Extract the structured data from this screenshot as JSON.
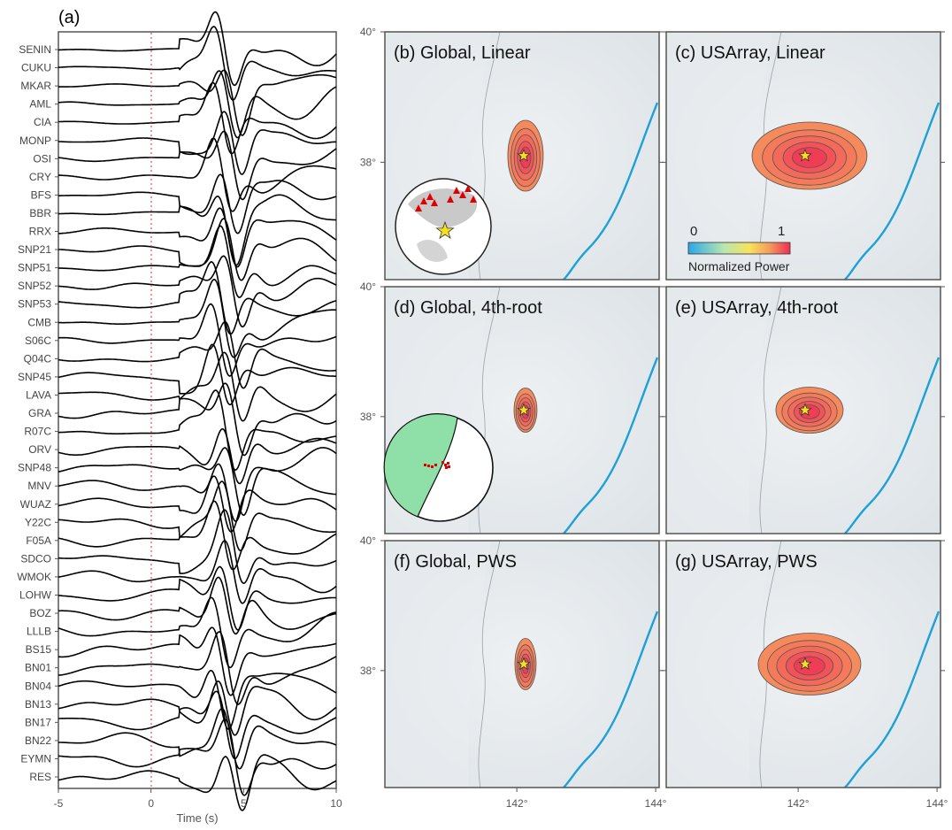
{
  "panel_a": {
    "label": "(a)",
    "stations": [
      "SENIN",
      "CUKU",
      "MKAR",
      "AML",
      "CIA",
      "MONP",
      "OSI",
      "CRY",
      "BFS",
      "BBR",
      "RRX",
      "SNP21",
      "SNP51",
      "SNP52",
      "SNP53",
      "CMB",
      "S06C",
      "Q04C",
      "SNP45",
      "LAVA",
      "GRA",
      "R07C",
      "ORV",
      "SNP48",
      "MNV",
      "WUAZ",
      "Y22C",
      "F05A",
      "SDCO",
      "WMOK",
      "LOHW",
      "BOZ",
      "LLLB",
      "BS15",
      "BN01",
      "BN04",
      "BN13",
      "BN17",
      "BN22",
      "EYMN",
      "RES"
    ],
    "xlabel": "Time (s)",
    "xticks": [
      "-5",
      "0",
      "5",
      "10"
    ]
  },
  "maps": {
    "ytick_labels": [
      "40°",
      "38°"
    ],
    "xtick_labels": [
      "142°",
      "144°"
    ],
    "panels": [
      {
        "label": "(b) Global, Linear"
      },
      {
        "label": "(c) USArray, Linear"
      },
      {
        "label": "(d) Global, 4th-root"
      },
      {
        "label": "(e) USArray, 4th-root"
      },
      {
        "label": "(f) Global, PWS"
      },
      {
        "label": "(g) USArray, PWS"
      }
    ],
    "colorbar": {
      "min": "0",
      "max": "1",
      "title": "Normalized Power"
    }
  },
  "chart_data": [
    {
      "type": "line",
      "title": "(a)",
      "xlabel": "Time (s)",
      "ylabel": "",
      "xlim": [
        -5,
        10
      ],
      "x_ticks": [
        -5,
        0,
        5,
        10
      ],
      "series_names": [
        "SENIN",
        "CUKU",
        "MKAR",
        "AML",
        "CIA",
        "MONP",
        "OSI",
        "CRY",
        "BFS",
        "BBR",
        "RRX",
        "SNP21",
        "SNP51",
        "SNP52",
        "SNP53",
        "CMB",
        "S06C",
        "Q04C",
        "SNP45",
        "LAVA",
        "GRA",
        "R07C",
        "ORV",
        "SNP48",
        "MNV",
        "WUAZ",
        "Y22C",
        "F05A",
        "SDCO",
        "WMOK",
        "LOHW",
        "BOZ",
        "LLLB",
        "BS15",
        "BN01",
        "BN04",
        "BN13",
        "BN17",
        "BN22",
        "EYMN",
        "RES"
      ],
      "reference_line_x": 0
    },
    {
      "type": "heatmap",
      "panels": [
        "(b) Global, Linear",
        "(c) USArray, Linear",
        "(d) Global, 4th-root",
        "(e) USArray, 4th-root",
        "(f) Global, PWS",
        "(g) USArray, PWS"
      ],
      "x_ticks": [
        142,
        144
      ],
      "y_ticks": [
        38,
        40
      ],
      "epicenter": {
        "lon": 142.1,
        "lat": 38.1
      },
      "colorbar_range": [
        0,
        1
      ],
      "colorbar_label": "Normalized Power"
    }
  ],
  "colors": {
    "trace": "#000000",
    "ref_line": "#e03030",
    "coast": "#1ea0d8",
    "power_high": "#ef3d55",
    "power_mid": "#f58a5c",
    "star": "#f4e01c",
    "beachball_fill": "#8fe0a8"
  }
}
